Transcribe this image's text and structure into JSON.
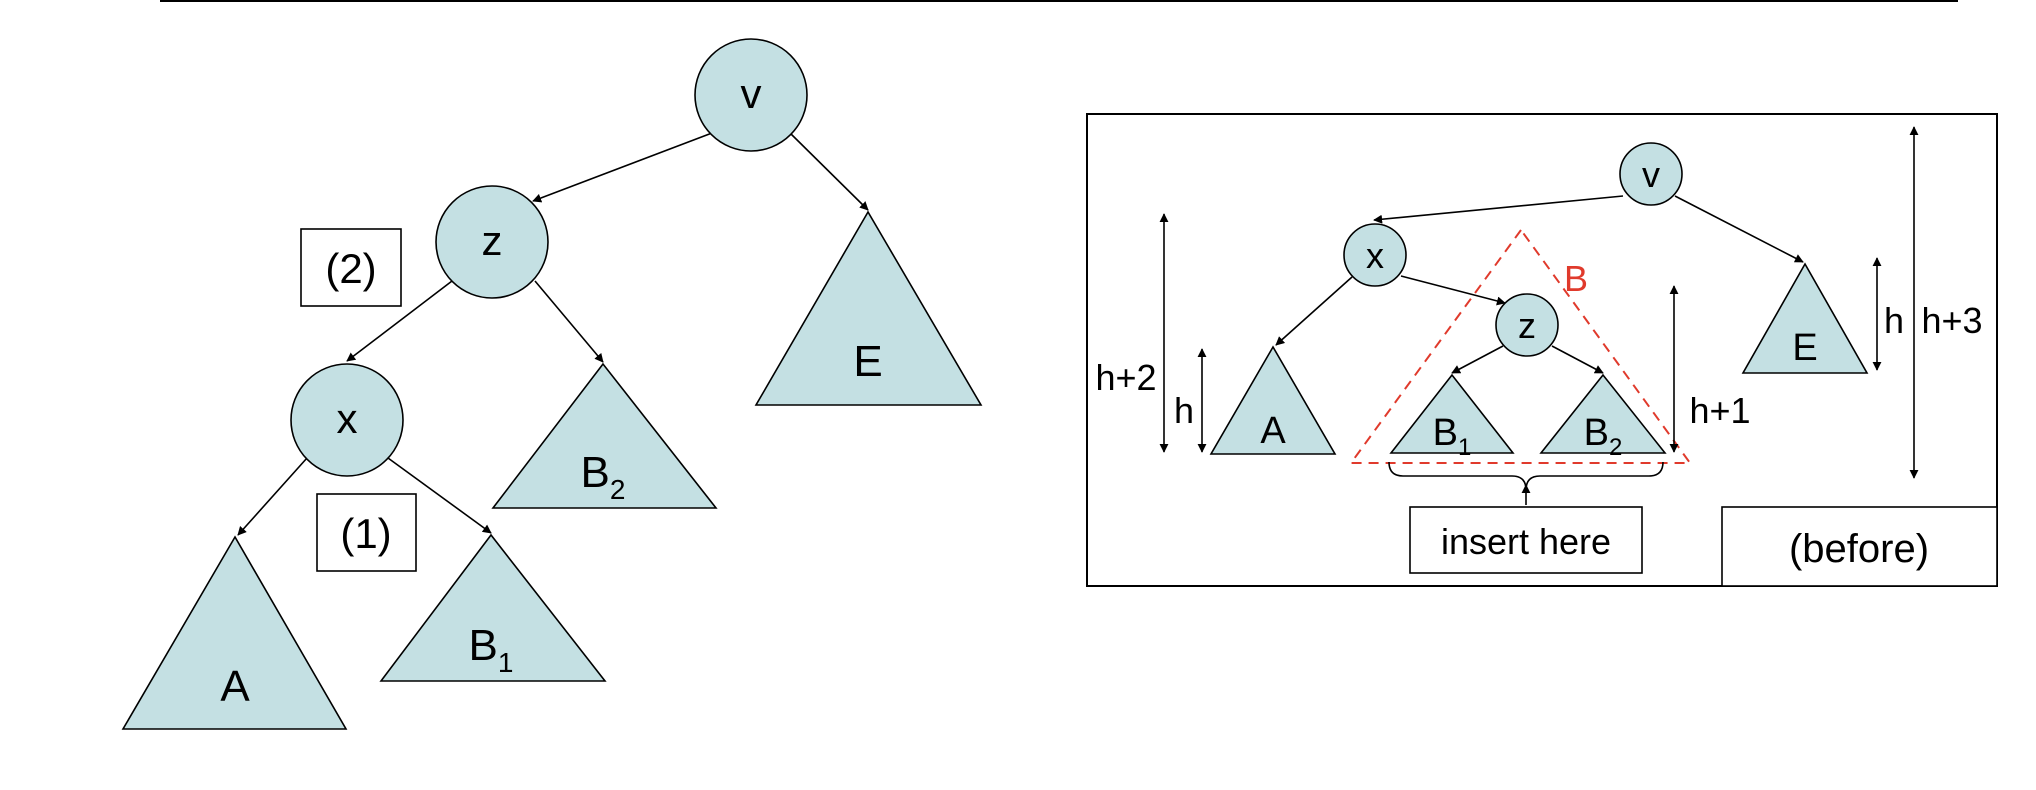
{
  "colors": {
    "node_fill": "#c4e0e3",
    "stroke": "#000000",
    "highlight": "#e03a2c"
  },
  "left_tree": {
    "nodes": {
      "v": "v",
      "z": "z",
      "x": "x"
    },
    "subtrees": {
      "A": "A",
      "B1": "B",
      "B1_sub": "1",
      "B2": "B",
      "B2_sub": "2",
      "E": "E"
    },
    "steps": {
      "step1": "(1)",
      "step2": "(2)"
    }
  },
  "right_panel": {
    "nodes": {
      "v": "v",
      "x": "x",
      "z": "z"
    },
    "subtrees": {
      "A": "A",
      "B1": "B",
      "B1_sub": "1",
      "B2": "B",
      "B2_sub": "2",
      "E": "E"
    },
    "group_label": "B",
    "heights": {
      "left_outer": "h+2",
      "left_inner": "h",
      "middle": "h+1",
      "right_inner": "h",
      "right_outer": "h+3"
    },
    "insert_label": "insert here",
    "state_label": "(before)"
  }
}
